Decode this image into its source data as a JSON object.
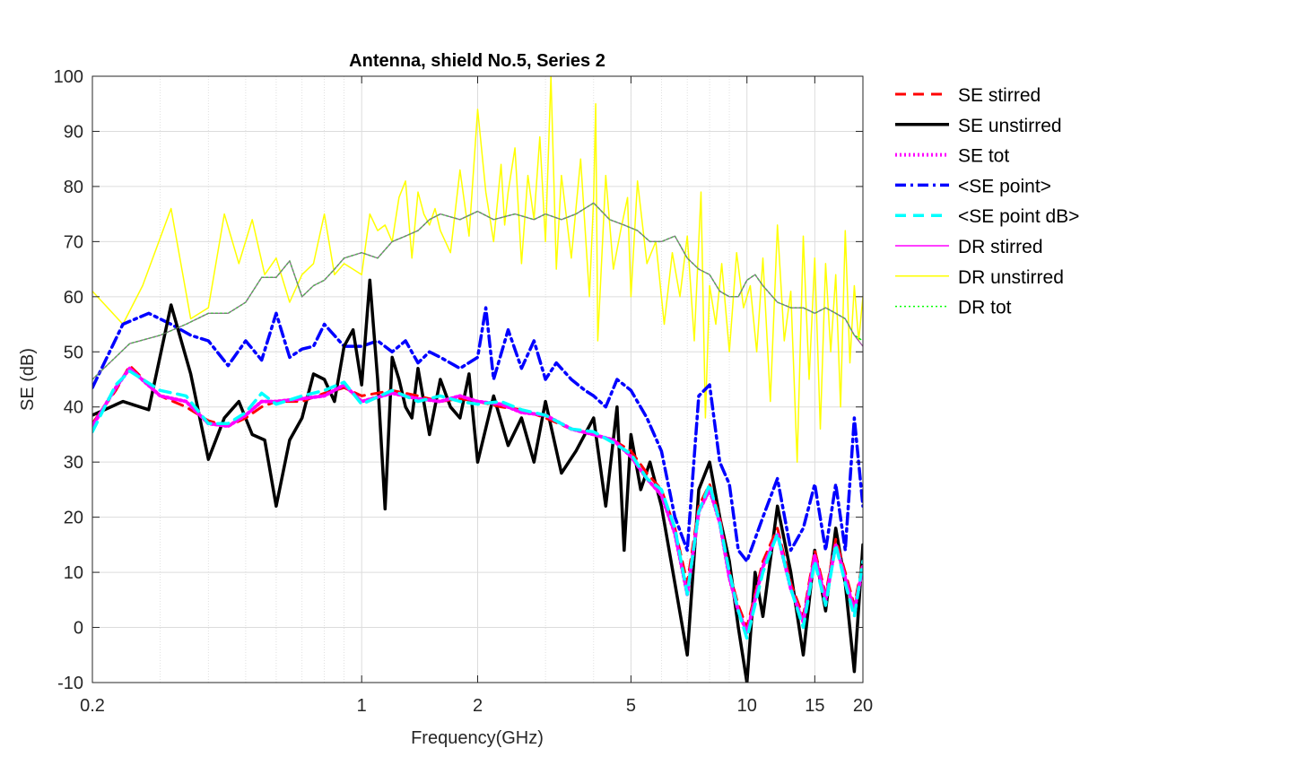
{
  "chart_data": {
    "type": "line",
    "title": "Antenna, shield No.5, Series 2",
    "xlabel": "Frequency(GHz)",
    "ylabel": "SE (dB)",
    "xscale": "log",
    "xlim": [
      0.2,
      20
    ],
    "ylim": [
      -10,
      100
    ],
    "x_ticks": [
      0.2,
      1,
      2,
      5,
      10,
      15,
      20
    ],
    "x_tick_labels": [
      "0.2",
      "1",
      "2",
      "5",
      "10",
      "15",
      "20"
    ],
    "y_ticks": [
      -10,
      0,
      10,
      20,
      30,
      40,
      50,
      60,
      70,
      80,
      90,
      100
    ],
    "y_tick_labels": [
      "-10",
      "0",
      "10",
      "20",
      "30",
      "40",
      "50",
      "60",
      "70",
      "80",
      "90",
      "100"
    ],
    "grid": true,
    "legend_position": "outside-right",
    "series": [
      {
        "name": "SE stirred",
        "color": "#ff0000",
        "style": "dashed",
        "width": 3,
        "x": [
          0.2,
          0.23,
          0.25,
          0.3,
          0.35,
          0.4,
          0.45,
          0.5,
          0.55,
          0.6,
          0.7,
          0.8,
          0.9,
          1.0,
          1.2,
          1.4,
          1.6,
          1.8,
          2.0,
          2.3,
          2.6,
          3.0,
          3.5,
          4.0,
          4.5,
          5.0,
          5.5,
          6.0,
          6.5,
          7.0,
          7.5,
          8.0,
          8.5,
          9.0,
          9.5,
          10,
          11,
          12,
          13,
          14,
          15,
          16,
          17,
          18,
          19,
          20
        ],
        "y": [
          37,
          43,
          47.5,
          42,
          40,
          37.5,
          36.5,
          38,
          40,
          41,
          41,
          42.5,
          43.5,
          42,
          43,
          42,
          41,
          41.5,
          41,
          40,
          39.5,
          38,
          36,
          35,
          34,
          32,
          28,
          25,
          18,
          8,
          22,
          26,
          20,
          10,
          4,
          0,
          12,
          18,
          8,
          2,
          14,
          6,
          16,
          10,
          4,
          12
        ]
      },
      {
        "name": "SE unstirred",
        "color": "#000000",
        "style": "solid",
        "width": 3.5,
        "x": [
          0.2,
          0.24,
          0.28,
          0.32,
          0.36,
          0.4,
          0.44,
          0.48,
          0.52,
          0.56,
          0.6,
          0.65,
          0.7,
          0.75,
          0.8,
          0.85,
          0.9,
          0.95,
          1.0,
          1.05,
          1.1,
          1.15,
          1.2,
          1.25,
          1.3,
          1.35,
          1.4,
          1.5,
          1.6,
          1.7,
          1.8,
          1.9,
          2.0,
          2.2,
          2.4,
          2.6,
          2.8,
          3.0,
          3.3,
          3.6,
          4.0,
          4.3,
          4.6,
          4.8,
          5.0,
          5.3,
          5.6,
          6.0,
          6.5,
          7.0,
          7.5,
          8.0,
          8.5,
          9.0,
          9.5,
          10,
          10.5,
          11,
          12,
          13,
          14,
          15,
          16,
          17,
          18,
          19,
          20
        ],
        "y": [
          38.5,
          41,
          39.5,
          58.5,
          46,
          30.5,
          38,
          41,
          35,
          34,
          22,
          34,
          38,
          46,
          45,
          41,
          51,
          54,
          44,
          63,
          45,
          21.5,
          49,
          45,
          40,
          38,
          47,
          35,
          45,
          40,
          38,
          46,
          30,
          42,
          33,
          38,
          30,
          41,
          28,
          32,
          38,
          22,
          40,
          14,
          35,
          25,
          30,
          22,
          8,
          -5,
          25,
          30,
          20,
          12,
          0,
          -10,
          10,
          2,
          22,
          10,
          -5,
          14,
          3,
          18,
          8,
          -8,
          15
        ]
      },
      {
        "name": "SE tot",
        "color": "#ff00ff",
        "style": "dotted",
        "width": 4,
        "x": [
          0.2,
          0.23,
          0.25,
          0.3,
          0.35,
          0.4,
          0.45,
          0.5,
          0.55,
          0.6,
          0.7,
          0.8,
          0.9,
          1.0,
          1.2,
          1.4,
          1.6,
          1.8,
          2.0,
          2.3,
          2.6,
          3.0,
          3.5,
          4.0,
          4.5,
          5.0,
          5.5,
          6.0,
          6.5,
          7.0,
          7.5,
          8.0,
          8.5,
          9.0,
          9.5,
          10,
          11,
          12,
          13,
          14,
          15,
          16,
          17,
          18,
          19,
          20
        ],
        "y": [
          36.5,
          43.5,
          47,
          42,
          41,
          37,
          36.5,
          38.5,
          41,
          41,
          41.5,
          42,
          44,
          41,
          42.5,
          41.5,
          41,
          42,
          41,
          40.5,
          39,
          38.5,
          36,
          35,
          34,
          31,
          27,
          24,
          17,
          6,
          21,
          25,
          19,
          9,
          3,
          -1,
          11,
          17,
          7,
          1,
          13,
          5,
          15,
          9,
          3,
          11
        ]
      },
      {
        "name": "<SE point>",
        "color": "#0000ff",
        "style": "dashdot",
        "width": 3.5,
        "x": [
          0.2,
          0.24,
          0.28,
          0.32,
          0.36,
          0.4,
          0.45,
          0.5,
          0.55,
          0.6,
          0.65,
          0.7,
          0.75,
          0.8,
          0.9,
          1.0,
          1.1,
          1.2,
          1.3,
          1.4,
          1.5,
          1.6,
          1.8,
          2.0,
          2.1,
          2.2,
          2.4,
          2.6,
          2.8,
          3.0,
          3.2,
          3.5,
          3.8,
          4.0,
          4.3,
          4.6,
          5.0,
          5.5,
          6.0,
          6.5,
          7.0,
          7.5,
          8.0,
          8.5,
          9.0,
          9.5,
          10,
          11,
          12,
          13,
          14,
          15,
          16,
          17,
          18,
          19,
          20
        ],
        "y": [
          43.5,
          55,
          57,
          55,
          53,
          52,
          47.5,
          52,
          48.5,
          57,
          49,
          50.5,
          51,
          55,
          51,
          51,
          52,
          50,
          52,
          48,
          50,
          49,
          47,
          49,
          58,
          45,
          54,
          47,
          52,
          45,
          48,
          45,
          43,
          42,
          40,
          45,
          43,
          38,
          32,
          20,
          14,
          42,
          44,
          30,
          26,
          14,
          12,
          20,
          27,
          14,
          18,
          26,
          14,
          26,
          14,
          38,
          22
        ]
      },
      {
        "name": "<SE point dB>",
        "color": "#00ffff",
        "style": "dashed",
        "width": 3.5,
        "x": [
          0.2,
          0.23,
          0.25,
          0.3,
          0.35,
          0.4,
          0.45,
          0.5,
          0.55,
          0.6,
          0.7,
          0.8,
          0.9,
          1.0,
          1.2,
          1.4,
          1.6,
          1.8,
          2.0,
          2.3,
          2.6,
          3.0,
          3.5,
          4.0,
          4.5,
          5.0,
          5.5,
          6.0,
          6.5,
          7.0,
          7.5,
          8.0,
          8.5,
          9.0,
          9.5,
          10,
          11,
          12,
          13,
          14,
          15,
          16,
          17,
          18,
          19,
          20
        ],
        "y": [
          35.5,
          44,
          46.5,
          43,
          42,
          37,
          37,
          39,
          42.5,
          40.5,
          42,
          43,
          44.5,
          40.5,
          43,
          41,
          42,
          41,
          40.5,
          41,
          39.5,
          38.5,
          36,
          35.5,
          33.5,
          31.5,
          27,
          25,
          18,
          6,
          21,
          26,
          19,
          10,
          3,
          -2,
          10,
          17,
          7,
          0,
          12,
          4,
          15,
          8,
          2,
          12
        ]
      },
      {
        "name": "DR stirred",
        "color": "#ff00ff",
        "style": "solid",
        "width": 1.2,
        "x": [
          0.2,
          0.25,
          0.3,
          0.35,
          0.4,
          0.45,
          0.5,
          0.55,
          0.6,
          0.65,
          0.7,
          0.75,
          0.8,
          0.85,
          0.9,
          1.0,
          1.1,
          1.2,
          1.3,
          1.4,
          1.5,
          1.6,
          1.8,
          2.0,
          2.2,
          2.5,
          2.8,
          3.0,
          3.3,
          3.6,
          4.0,
          4.4,
          4.8,
          5.2,
          5.6,
          6.0,
          6.5,
          7.0,
          7.5,
          8.0,
          8.5,
          9.0,
          9.5,
          10,
          10.5,
          11,
          12,
          13,
          14,
          15,
          16,
          17,
          18,
          19,
          20
        ],
        "y": [
          45,
          51.5,
          53,
          55,
          57,
          57,
          59,
          63.5,
          63.5,
          66.5,
          60,
          62,
          63,
          65,
          67,
          68,
          67,
          70,
          71,
          72,
          74,
          75,
          74,
          75.5,
          74,
          75,
          74,
          75,
          74,
          75,
          77,
          74,
          73,
          72,
          70,
          70,
          71,
          67,
          65,
          64,
          61,
          60,
          60,
          63,
          64,
          62,
          59,
          58,
          58,
          57,
          58,
          57,
          56,
          53,
          51
        ]
      },
      {
        "name": "DR unstirred",
        "color": "#ffff00",
        "style": "solid",
        "width": 1.5,
        "x": [
          0.2,
          0.24,
          0.27,
          0.32,
          0.36,
          0.4,
          0.44,
          0.48,
          0.52,
          0.56,
          0.6,
          0.65,
          0.7,
          0.75,
          0.8,
          0.85,
          0.9,
          0.95,
          1.0,
          1.05,
          1.1,
          1.15,
          1.2,
          1.25,
          1.3,
          1.35,
          1.4,
          1.45,
          1.5,
          1.55,
          1.6,
          1.7,
          1.8,
          1.9,
          2.0,
          2.1,
          2.2,
          2.3,
          2.35,
          2.4,
          2.5,
          2.6,
          2.7,
          2.8,
          2.9,
          3.0,
          3.1,
          3.2,
          3.3,
          3.5,
          3.7,
          3.9,
          4.0,
          4.05,
          4.1,
          4.3,
          4.5,
          4.7,
          4.9,
          5.0,
          5.2,
          5.5,
          5.8,
          6.1,
          6.4,
          6.7,
          7.0,
          7.3,
          7.6,
          7.8,
          8.0,
          8.3,
          8.6,
          9.0,
          9.4,
          9.8,
          10.2,
          10.6,
          11,
          11.5,
          12,
          12.5,
          13,
          13.5,
          14,
          14.5,
          15,
          15.5,
          16,
          16.5,
          17,
          17.5,
          18,
          18.5,
          19,
          19.5,
          20
        ],
        "y": [
          61,
          55,
          62,
          76,
          56,
          58,
          75,
          66,
          74,
          64,
          67,
          59,
          64,
          66,
          75,
          64,
          66,
          65,
          64,
          75,
          72,
          73,
          70,
          78,
          81,
          67,
          79,
          75,
          73,
          76,
          72,
          68,
          83,
          71,
          94,
          79,
          70,
          84,
          73,
          79,
          87,
          66,
          82,
          74,
          89,
          70,
          100,
          65,
          82,
          67,
          85,
          60,
          78,
          95,
          52,
          82,
          65,
          72,
          78,
          60,
          81,
          66,
          70,
          55,
          68,
          60,
          71,
          52,
          79,
          38,
          62,
          55,
          66,
          50,
          68,
          58,
          62,
          50,
          67,
          41,
          73,
          52,
          61,
          30,
          71,
          45,
          67,
          36,
          66,
          50,
          64,
          40,
          72,
          48,
          62,
          52,
          60
        ]
      },
      {
        "name": "DR tot",
        "color": "#00ff00",
        "style": "dotted",
        "width": 1.5,
        "x": [
          0.2,
          0.25,
          0.3,
          0.35,
          0.4,
          0.45,
          0.5,
          0.55,
          0.6,
          0.65,
          0.7,
          0.75,
          0.8,
          0.85,
          0.9,
          1.0,
          1.1,
          1.2,
          1.3,
          1.4,
          1.5,
          1.6,
          1.8,
          2.0,
          2.2,
          2.5,
          2.8,
          3.0,
          3.3,
          3.6,
          4.0,
          4.4,
          4.8,
          5.2,
          5.6,
          6.0,
          6.5,
          7.0,
          7.5,
          8.0,
          8.5,
          9.0,
          9.5,
          10,
          10.5,
          11,
          12,
          13,
          14,
          15,
          16,
          17,
          18,
          19,
          20
        ],
        "y": [
          45,
          51.5,
          53,
          55,
          57,
          57,
          59,
          63.5,
          63.5,
          66.5,
          60,
          62,
          63,
          65,
          67,
          68,
          67,
          70,
          71,
          72,
          74,
          75,
          74,
          75.5,
          74,
          75,
          74,
          75,
          74,
          75,
          77,
          74,
          73,
          72,
          70,
          70,
          71,
          67,
          65,
          64,
          61,
          60,
          60,
          63,
          64,
          62,
          59,
          58,
          58,
          57,
          58,
          57,
          56,
          53,
          52
        ]
      }
    ]
  }
}
